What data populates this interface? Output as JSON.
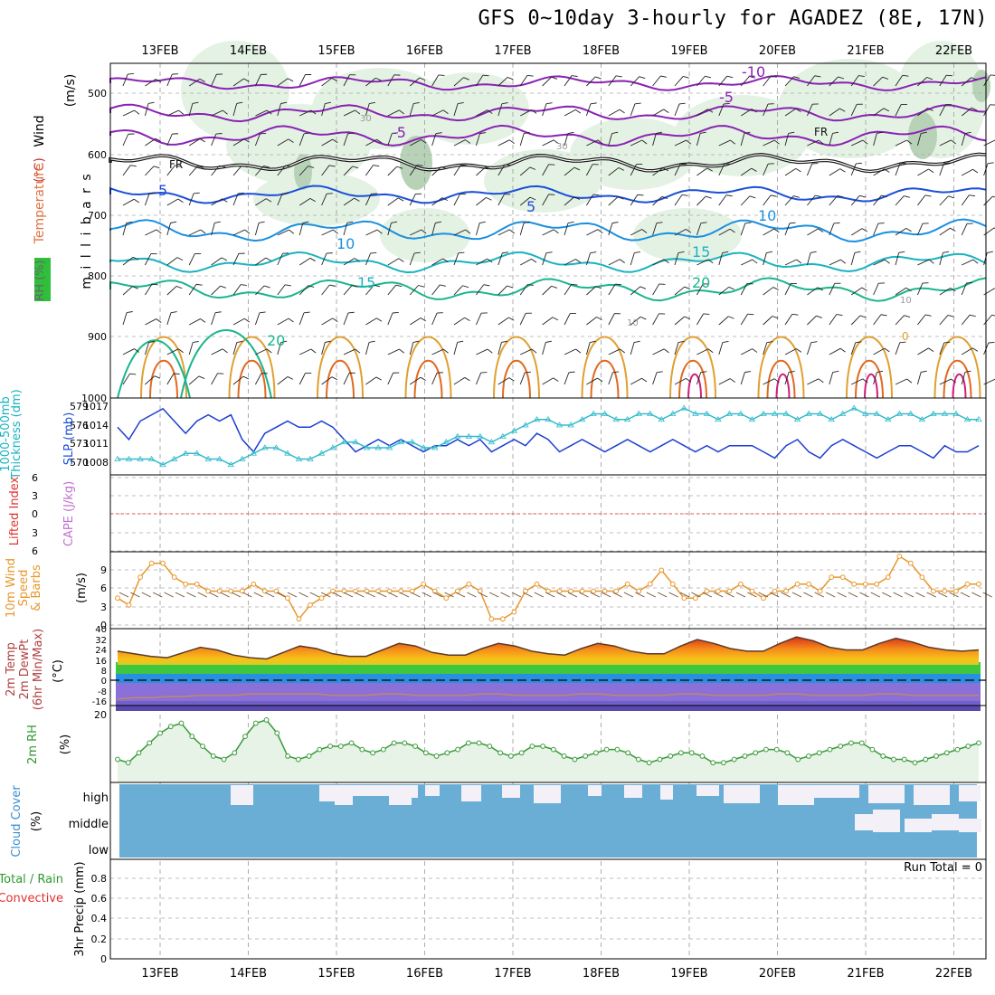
{
  "title": "GFS 0~10day 3-hourly for AGADEZ (8E, 17N)",
  "dates": [
    "13FEB",
    "14FEB",
    "15FEB",
    "16FEB",
    "17FEB",
    "18FEB",
    "19FEB",
    "20FEB",
    "21FEB",
    "22FEB"
  ],
  "panels": {
    "upper": {
      "ylabel_parts": [
        "Temperature",
        "(°C)",
        "Wind",
        "(m/s)"
      ],
      "rh_label": "RH (%)",
      "pressure_label": "m i l l i b a r s",
      "pressure_unit": "( )",
      "ticks": [
        "500",
        "600",
        "700",
        "800",
        "900",
        "1000"
      ],
      "contour_labels": [
        "-10",
        "-5",
        "-5",
        "FR",
        "FR",
        "5",
        "5",
        "10",
        "10",
        "15",
        "15",
        "20",
        "20",
        "30",
        "30",
        "10",
        "10",
        "0"
      ]
    },
    "thickness": {
      "label_left": "1000-500mb",
      "label_left2": "Thickness (dm)",
      "label_right": "SLP (mb)",
      "ticks_left": [
        "579",
        "576",
        "573",
        "570"
      ],
      "ticks_right": [
        "1017",
        "1014",
        "1011",
        "1008"
      ]
    },
    "cape": {
      "label_left": "Lifted Index",
      "label_right": "CAPE (J/kg)",
      "ticks": [
        "6",
        "3",
        "0",
        "3",
        "6"
      ]
    },
    "wind10": {
      "label_lines": [
        "10m Wind",
        "Speed",
        "& Barbs"
      ],
      "unit": "(m/s)",
      "ticks": [
        "9",
        "6",
        "3",
        "0"
      ]
    },
    "temp2m": {
      "label_lines": [
        "2m Temp",
        "2m DewPt",
        "(6hr Min/Max)"
      ],
      "unit": "(°C)",
      "ticks": [
        "40",
        "32",
        "24",
        "16",
        "8",
        "0",
        "-8",
        "-16"
      ]
    },
    "rh2m": {
      "label": "2m RH",
      "unit": "(%)",
      "ticks": [
        "20"
      ]
    },
    "cloud": {
      "label": "Cloud Cover",
      "unit": "(%)",
      "levels": [
        "high",
        "middle",
        "low"
      ]
    },
    "precip": {
      "label_lines": [
        "Total / Rain",
        "Convective"
      ],
      "ylabel": "3hr Precip (mm)",
      "ticks": [
        "0.8",
        "0.6",
        "0.4",
        "0.2",
        "0"
      ],
      "run_total": "Run Total = 0"
    }
  },
  "colors": {
    "accent_blue": "#1b4fd8",
    "cyan": "#33bbcc",
    "orange": "#e8962a",
    "green_rh": "#2c9a2c",
    "cloud_blue": "#6aaed6"
  },
  "chart_data": [
    {
      "type": "line",
      "title": "1000-500mb Thickness / SLP",
      "series": [
        {
          "name": "1000-500mb Thickness (dm)",
          "values": [
            576,
            574,
            577,
            578,
            579,
            577,
            575,
            577,
            578,
            577,
            578,
            574,
            572,
            575,
            576,
            577,
            576,
            576,
            577,
            576,
            574,
            572,
            573,
            574,
            573,
            574,
            573,
            572,
            573,
            573,
            574,
            573,
            574,
            572,
            573,
            574,
            573,
            575,
            574,
            572,
            573,
            574,
            573,
            572,
            573,
            574,
            573,
            572,
            573,
            574,
            573,
            572,
            573,
            572,
            573,
            573,
            573,
            572,
            571,
            573,
            574,
            572,
            571,
            573,
            574,
            573,
            572,
            571,
            572,
            573,
            573,
            572,
            571,
            573,
            572,
            572,
            573
          ]
        },
        {
          "name": "SLP (mb)",
          "values": [
            1008,
            1008,
            1008,
            1008,
            1007,
            1008,
            1009,
            1009,
            1008,
            1008,
            1007,
            1008,
            1009,
            1010,
            1010,
            1009,
            1008,
            1008,
            1009,
            1010,
            1011,
            1011,
            1010,
            1010,
            1010,
            1011,
            1011,
            1010,
            1010,
            1011,
            1012,
            1012,
            1012,
            1011,
            1012,
            1013,
            1014,
            1015,
            1015,
            1014,
            1014,
            1015,
            1016,
            1016,
            1015,
            1015,
            1016,
            1016,
            1015,
            1016,
            1017,
            1016,
            1016,
            1015,
            1016,
            1016,
            1015,
            1016,
            1016,
            1016,
            1015,
            1016,
            1016,
            1015,
            1016,
            1017,
            1016,
            1016,
            1015,
            1016,
            1016,
            1015,
            1016,
            1016,
            1016,
            1015,
            1015
          ]
        }
      ],
      "ylim_left": [
        569,
        580
      ],
      "ylim_right": [
        1006,
        1018
      ]
    },
    {
      "type": "line",
      "title": "10m Wind Speed",
      "values": [
        4,
        3,
        7,
        9,
        9,
        7,
        6,
        6,
        5,
        5,
        5,
        5,
        6,
        5,
        5,
        4,
        1,
        3,
        4,
        5,
        5,
        5,
        5,
        5,
        5,
        5,
        5,
        6,
        5,
        4,
        5,
        6,
        5,
        1,
        1,
        2,
        5,
        6,
        5,
        5,
        5,
        5,
        5,
        5,
        5,
        6,
        5,
        6,
        8,
        6,
        4,
        4,
        5,
        5,
        5,
        6,
        5,
        4,
        5,
        5,
        6,
        6,
        5,
        7,
        7,
        6,
        6,
        6,
        7,
        10,
        9,
        7,
        5,
        5,
        5,
        6,
        6
      ],
      "ylim": [
        0,
        10
      ]
    },
    {
      "type": "area",
      "title": "2m Temp / 2m DewPt",
      "series": [
        {
          "name": "2m Temp",
          "values": [
            24,
            22,
            20,
            19,
            23,
            27,
            25,
            21,
            19,
            18,
            23,
            28,
            26,
            22,
            20,
            20,
            25,
            30,
            28,
            23,
            21,
            21,
            26,
            30,
            28,
            24,
            22,
            21,
            26,
            30,
            28,
            24,
            22,
            22,
            28,
            33,
            30,
            26,
            24,
            24,
            30,
            35,
            32,
            27,
            25,
            25,
            30,
            34,
            31,
            27,
            25,
            24,
            25
          ]
        },
        {
          "name": "2m DewPt",
          "values": [
            -13,
            -12,
            -12,
            -11,
            -11,
            -10,
            -10,
            -10,
            -9,
            -9,
            -9,
            -9,
            -9,
            -10,
            -10,
            -10,
            -9,
            -9,
            -10,
            -10,
            -10,
            -10,
            -9,
            -9,
            -10,
            -10,
            -10,
            -10,
            -9,
            -9,
            -10,
            -10,
            -10,
            -10,
            -9,
            -9,
            -10,
            -10,
            -10,
            -10,
            -9,
            -9,
            -10,
            -10,
            -10,
            -10,
            -9,
            -9,
            -10,
            -10,
            -10,
            -10,
            -10
          ]
        }
      ],
      "ylim": [
        -18,
        40
      ]
    },
    {
      "type": "area",
      "title": "2m RH",
      "values": [
        7,
        6,
        9,
        12,
        15,
        17,
        18,
        14,
        11,
        8,
        7,
        9,
        14,
        18,
        19,
        15,
        8,
        7,
        8,
        10,
        11,
        11,
        12,
        10,
        9,
        10,
        12,
        12,
        11,
        9,
        8,
        9,
        10,
        12,
        12,
        11,
        9,
        8,
        9,
        11,
        11,
        10,
        8,
        7,
        8,
        9,
        10,
        10,
        9,
        7,
        6,
        7,
        8,
        9,
        9,
        8,
        6,
        6,
        7,
        8,
        9,
        10,
        10,
        9,
        7,
        8,
        9,
        10,
        11,
        12,
        12,
        10,
        8,
        7,
        7,
        6,
        7,
        8,
        9,
        10,
        11,
        12
      ]
    },
    {
      "type": "line",
      "title": "3hr Precip (mm)",
      "values": [
        0,
        0,
        0,
        0,
        0,
        0,
        0,
        0,
        0,
        0
      ],
      "ylim": [
        0,
        1
      ]
    }
  ]
}
